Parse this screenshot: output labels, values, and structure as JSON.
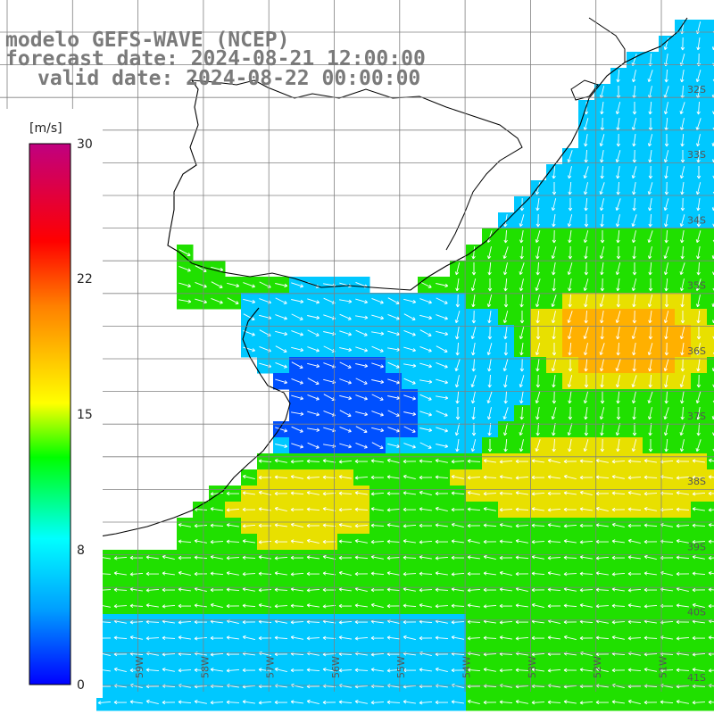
{
  "title": {
    "line1": "modelo GEFS-WAVE (NCEP)",
    "line2": "forecast date: 2024-08-21 12:00:00",
    "line3": "valid date: 2024-08-22 00:00:00"
  },
  "colorbar": {
    "unit": "[m/s]",
    "ticks": [
      "30",
      "22",
      "15",
      "8",
      "0"
    ],
    "tick_values": [
      30,
      22,
      15,
      8,
      0
    ],
    "colors": [
      "#0000ff",
      "#00a0ff",
      "#00ffff",
      "#00ff00",
      "#ffff00",
      "#ff8000",
      "#ff0000",
      "#c00080"
    ]
  },
  "map": {
    "lat_labels": [
      "32S",
      "33S",
      "34S",
      "35S",
      "36S",
      "37S",
      "38S",
      "39S",
      "40S",
      "41S"
    ],
    "lon_labels": [
      "59W",
      "58W",
      "57W",
      "56W",
      "55W",
      "54W",
      "53W",
      "52W",
      "51W"
    ],
    "variable": "wind speed and direction",
    "ocean_colors": {
      "calm": "#0050ff",
      "low": "#00c8ff",
      "moderate": "#20e000",
      "high": "#e8e000",
      "peak": "#ffb000"
    },
    "land_color": "#ffffff",
    "coast_color": "#000000",
    "grid_color": "#808080"
  }
}
